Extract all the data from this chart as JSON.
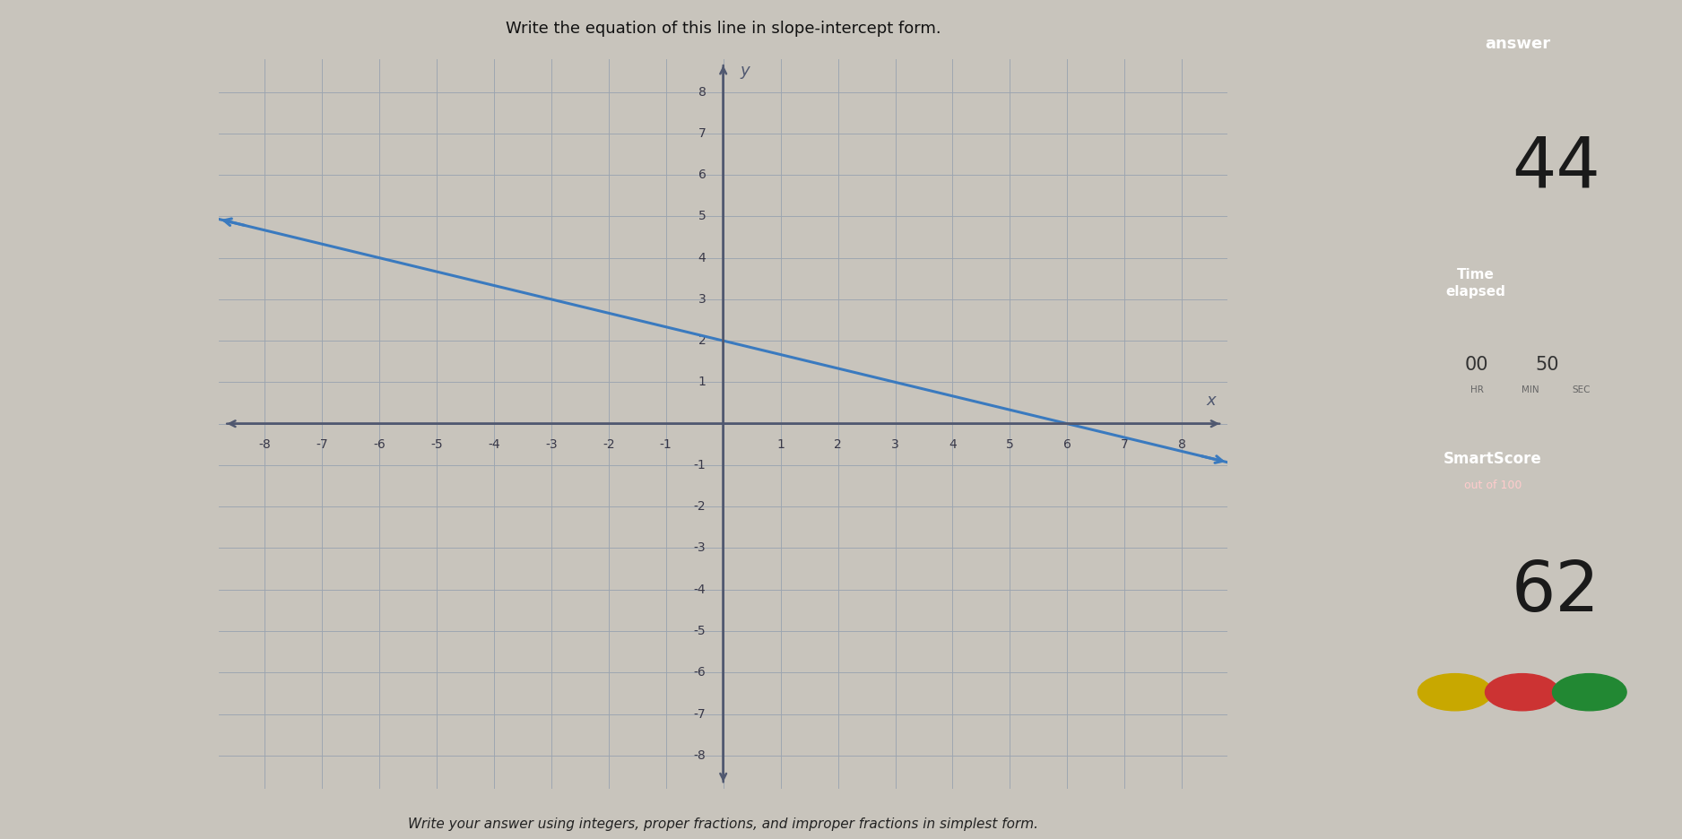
{
  "title": "Write the equation of this line in slope-intercept form.",
  "subtitle": "Write your answer using integers, proper fractions, and improper fractions in simplest form.",
  "bg_color": "#c8c4bc",
  "graph_bg": "#dedad2",
  "grid_color": "#9aa4b0",
  "axis_color": "#505870",
  "line_color": "#3a7abf",
  "xlim": [
    -8.8,
    8.8
  ],
  "ylim": [
    -8.8,
    8.8
  ],
  "xticks": [
    -8,
    -7,
    -6,
    -5,
    -4,
    -3,
    -2,
    -1,
    1,
    2,
    3,
    4,
    5,
    6,
    7,
    8
  ],
  "yticks": [
    -8,
    -7,
    -6,
    -5,
    -4,
    -3,
    -2,
    -1,
    1,
    2,
    3,
    4,
    5,
    6,
    7,
    8
  ],
  "x_label": "x",
  "y_label": "y",
  "answer_number": "44",
  "smartscore": "62",
  "left_panel_color": "#5baec8",
  "right_panel_color": "#c8c4bc",
  "answer_bg": "#4caf50",
  "time_bg": "#2196f3",
  "smartscore_bg": "#c0392b",
  "line_slope": -0.3333,
  "line_intercept": 2.0,
  "line_x_start": -8.8,
  "line_x_end": 8.8
}
